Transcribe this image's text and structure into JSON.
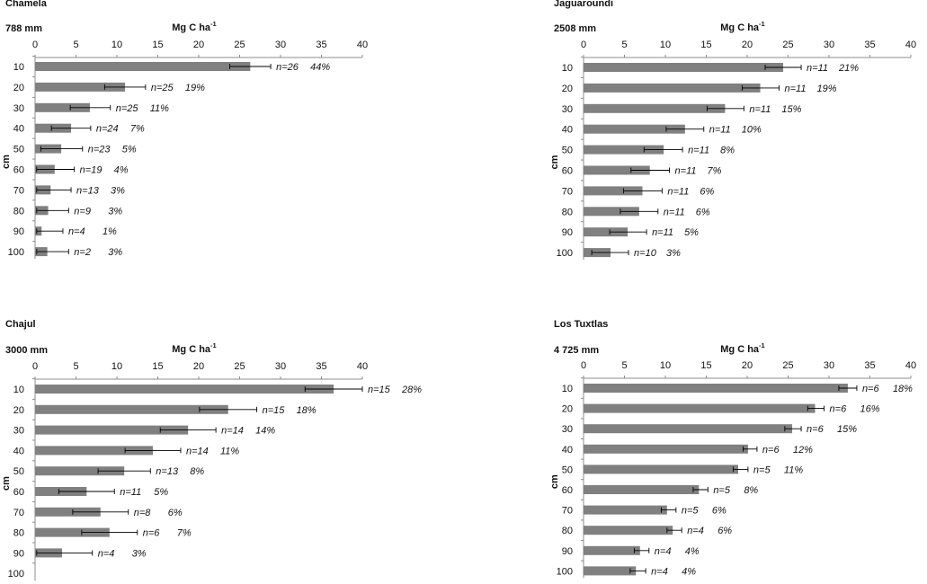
{
  "chart_data": [
    {
      "type": "bar",
      "orientation": "horizontal",
      "title": "Chamela",
      "precipitation": "788 mm",
      "xlabel": "Mg C ha",
      "xlabel_sup": "-1",
      "ylabel": "cm",
      "xlim": [
        0,
        40
      ],
      "xticks": [
        "0",
        "5",
        "10",
        "15",
        "20",
        "25",
        "30",
        "35",
        "40"
      ],
      "categories": [
        "10",
        "20",
        "30",
        "40",
        "50",
        "60",
        "70",
        "80",
        "90",
        "100"
      ],
      "values": [
        26.3,
        11.0,
        6.7,
        4.4,
        3.2,
        2.4,
        1.9,
        1.6,
        0.8,
        1.5
      ],
      "error_low": [
        23.8,
        8.5,
        4.3,
        2.0,
        0.7,
        0.2,
        0.2,
        0.2,
        0.2,
        0.2
      ],
      "error_high": [
        28.8,
        13.5,
        9.2,
        6.8,
        5.8,
        4.8,
        4.4,
        4.1,
        3.4,
        4.1
      ],
      "n_labels": [
        "n=26",
        "n=25",
        "n=25",
        "n=24",
        "n=23",
        "n=19",
        "n=13",
        "n=9",
        "n=4",
        "n=2"
      ],
      "pct_labels": [
        "44%",
        "19%",
        "11%",
        "7%",
        "5%",
        "4%",
        "3%",
        "3%",
        "1%",
        "3%"
      ]
    },
    {
      "type": "bar",
      "orientation": "horizontal",
      "title": "Jaguaroundi",
      "precipitation": "2508 mm",
      "xlabel": "Mg C ha",
      "xlabel_sup": "-1",
      "ylabel": "cm",
      "xlim": [
        0,
        40
      ],
      "xticks": [
        "0",
        "5",
        "10",
        "15",
        "20",
        "25",
        "30",
        "35",
        "40"
      ],
      "categories": [
        "10",
        "20",
        "30",
        "40",
        "50",
        "60",
        "70",
        "80",
        "90",
        "100"
      ],
      "values": [
        24.4,
        21.6,
        17.3,
        12.4,
        9.8,
        8.1,
        7.2,
        6.8,
        5.4,
        3.3
      ],
      "error_low": [
        22.2,
        19.4,
        15.1,
        10.1,
        7.4,
        5.8,
        4.9,
        4.5,
        3.2,
        1.0
      ],
      "error_high": [
        26.6,
        23.9,
        19.6,
        14.7,
        12.1,
        10.5,
        9.6,
        9.1,
        7.7,
        5.5
      ],
      "n_labels": [
        "n=11",
        "n=11",
        "n=11",
        "n=11",
        "n=11",
        "n=11",
        "n=11",
        "n=11",
        "n=11",
        "n=10"
      ],
      "pct_labels": [
        "21%",
        "19%",
        "15%",
        "10%",
        "8%",
        "7%",
        "6%",
        "6%",
        "5%",
        "3%"
      ]
    },
    {
      "type": "bar",
      "orientation": "horizontal",
      "title": "Chajul",
      "precipitation": "3000 mm",
      "xlabel": "Mg C ha",
      "xlabel_sup": "-1",
      "ylabel": "cm",
      "xlim": [
        0,
        40
      ],
      "xticks": [
        "0",
        "5",
        "10",
        "15",
        "20",
        "25",
        "30",
        "35",
        "40"
      ],
      "categories": [
        "10",
        "20",
        "30",
        "40",
        "50",
        "60",
        "70",
        "80",
        "90",
        "100"
      ],
      "values": [
        36.5,
        23.6,
        18.7,
        14.4,
        10.9,
        6.3,
        8.0,
        9.1,
        3.3,
        null
      ],
      "error_low": [
        33.0,
        20.1,
        15.3,
        11.0,
        7.7,
        2.9,
        4.6,
        5.7,
        0.2,
        null
      ],
      "error_high": [
        40.0,
        27.1,
        22.1,
        17.8,
        14.1,
        9.7,
        11.4,
        12.5,
        7.0,
        null
      ],
      "n_labels": [
        "n=15",
        "n=15",
        "n=14",
        "n=14",
        "n=13",
        "n=11",
        "n=8",
        "n=6",
        "n=4",
        ""
      ],
      "pct_labels": [
        "28%",
        "18%",
        "14%",
        "11%",
        "8%",
        "5%",
        "6%",
        "7%",
        "3%",
        ""
      ]
    },
    {
      "type": "bar",
      "orientation": "horizontal",
      "title": "Los Tuxtlas",
      "precipitation": "4 725 mm",
      "xlabel": "Mg C ha",
      "xlabel_sup": "-1",
      "ylabel": "cm",
      "xlim": [
        0,
        40
      ],
      "xticks": [
        "0",
        "5",
        "10",
        "15",
        "20",
        "25",
        "30",
        "35",
        "40"
      ],
      "categories": [
        "10",
        "20",
        "30",
        "40",
        "50",
        "60",
        "70",
        "80",
        "90",
        "100"
      ],
      "values": [
        32.3,
        28.3,
        25.5,
        20.1,
        18.9,
        14.1,
        10.2,
        10.9,
        6.9,
        6.4
      ],
      "error_low": [
        31.2,
        27.4,
        24.6,
        19.5,
        18.3,
        13.4,
        9.5,
        10.2,
        6.2,
        5.7
      ],
      "error_high": [
        33.4,
        29.4,
        26.6,
        21.2,
        20.1,
        15.2,
        11.3,
        12.0,
        8.0,
        7.6
      ],
      "n_labels": [
        "n=6",
        "n=6",
        "n=6",
        "n=6",
        "n=5",
        "n=5",
        "n=5",
        "n=4",
        "n=4",
        "n=4"
      ],
      "pct_labels": [
        "18%",
        "16%",
        "15%",
        "12%",
        "11%",
        "8%",
        "6%",
        "6%",
        "4%",
        "4%"
      ]
    }
  ]
}
